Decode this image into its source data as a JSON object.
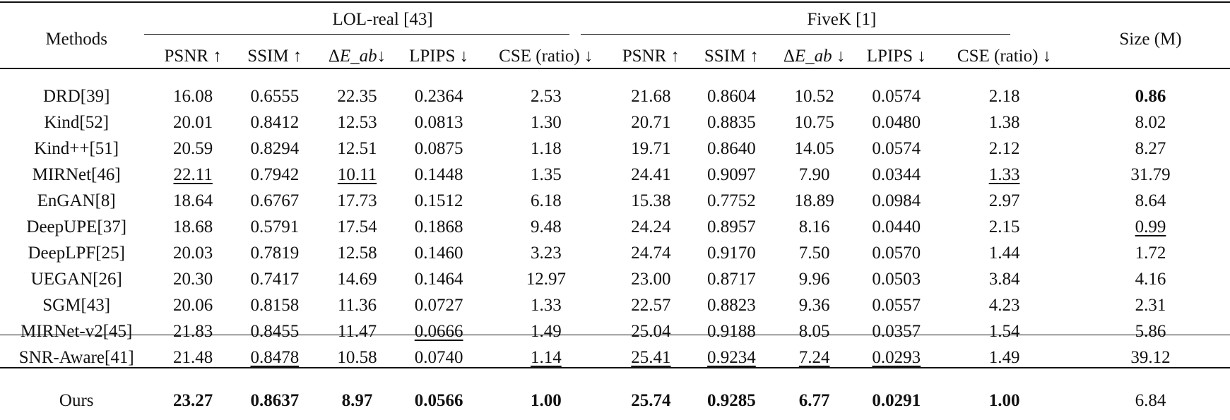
{
  "header": {
    "methods": "Methods",
    "group1": "LOL-real [43]",
    "group2": "FiveK [1]",
    "size": "Size (M)",
    "metrics_g1": [
      "PSNR ↑",
      "SSIM ↑",
      "ΔE_ab↓",
      "LPIPS ↓",
      "CSE (ratio) ↓"
    ],
    "metrics_g2": [
      "PSNR ↑",
      "SSIM ↑",
      "ΔE_ab ↓",
      "LPIPS ↓",
      "CSE (ratio) ↓"
    ]
  },
  "rows": [
    {
      "method": "DRD[39]",
      "vals": [
        "16.08",
        "0.6555",
        "22.35",
        "0.2364",
        "2.53",
        "21.68",
        "0.8604",
        "10.52",
        "0.0574",
        "2.18",
        "0.86"
      ],
      "bold": [
        10
      ],
      "underline": []
    },
    {
      "method": "Kind[52]",
      "vals": [
        "20.01",
        "0.8412",
        "12.53",
        "0.0813",
        "1.30",
        "20.71",
        "0.8835",
        "10.75",
        "0.0480",
        "1.38",
        "8.02"
      ],
      "bold": [],
      "underline": []
    },
    {
      "method": "Kind++[51]",
      "vals": [
        "20.59",
        "0.8294",
        "12.51",
        "0.0875",
        "1.18",
        "19.71",
        "0.8640",
        "14.05",
        "0.0574",
        "2.12",
        "8.27"
      ],
      "bold": [],
      "underline": []
    },
    {
      "method": "MIRNet[46]",
      "vals": [
        "22.11",
        "0.7942",
        "10.11",
        "0.1448",
        "1.35",
        "24.41",
        "0.9097",
        "7.90",
        "0.0344",
        "1.33",
        "31.79"
      ],
      "bold": [],
      "underline": [
        0,
        2,
        9
      ]
    },
    {
      "method": "EnGAN[8]",
      "vals": [
        "18.64",
        "0.6767",
        "17.73",
        "0.1512",
        "6.18",
        "15.38",
        "0.7752",
        "18.89",
        "0.0984",
        "2.97",
        "8.64"
      ],
      "bold": [],
      "underline": []
    },
    {
      "method": "DeepUPE[37]",
      "vals": [
        "18.68",
        "0.5791",
        "17.54",
        "0.1868",
        "9.48",
        "24.24",
        "0.8957",
        "8.16",
        "0.0440",
        "2.15",
        "0.99"
      ],
      "bold": [],
      "underline": [
        10
      ]
    },
    {
      "method": "DeepLPF[25]",
      "vals": [
        "20.03",
        "0.7819",
        "12.58",
        "0.1460",
        "3.23",
        "24.74",
        "0.9170",
        "7.50",
        "0.0570",
        "1.44",
        "1.72"
      ],
      "bold": [],
      "underline": []
    },
    {
      "method": "UEGAN[26]",
      "vals": [
        "20.30",
        "0.7417",
        "14.69",
        "0.1464",
        "12.97",
        "23.00",
        "0.8717",
        "9.96",
        "0.0503",
        "3.84",
        "4.16"
      ],
      "bold": [],
      "underline": []
    },
    {
      "method": "SGM[43]",
      "vals": [
        "20.06",
        "0.8158",
        "11.36",
        "0.0727",
        "1.33",
        "22.57",
        "0.8823",
        "9.36",
        "0.0557",
        "4.23",
        "2.31"
      ],
      "bold": [],
      "underline": []
    },
    {
      "method": "MIRNet-v2[45]",
      "vals": [
        "21.83",
        "0.8455",
        "11.47",
        "0.0666",
        "1.49",
        "25.04",
        "0.9188",
        "8.05",
        "0.0357",
        "1.54",
        "5.86"
      ],
      "bold": [],
      "underline": [
        3
      ]
    },
    {
      "method": "SNR-Aware[41]",
      "vals": [
        "21.48",
        "0.8478",
        "10.58",
        "0.0740",
        "1.14",
        "25.41",
        "0.9234",
        "7.24",
        "0.0293",
        "1.49",
        "39.12"
      ],
      "bold": [],
      "underline": [
        1,
        4,
        5,
        6,
        7,
        8
      ]
    }
  ],
  "ours": {
    "method": "Ours",
    "vals": [
      "23.27",
      "0.8637",
      "8.97",
      "0.0566",
      "1.00",
      "25.74",
      "0.9285",
      "6.77",
      "0.0291",
      "1.00",
      "6.84"
    ],
    "bold": [
      0,
      1,
      2,
      3,
      4,
      5,
      6,
      7,
      8,
      9
    ],
    "underline": []
  }
}
